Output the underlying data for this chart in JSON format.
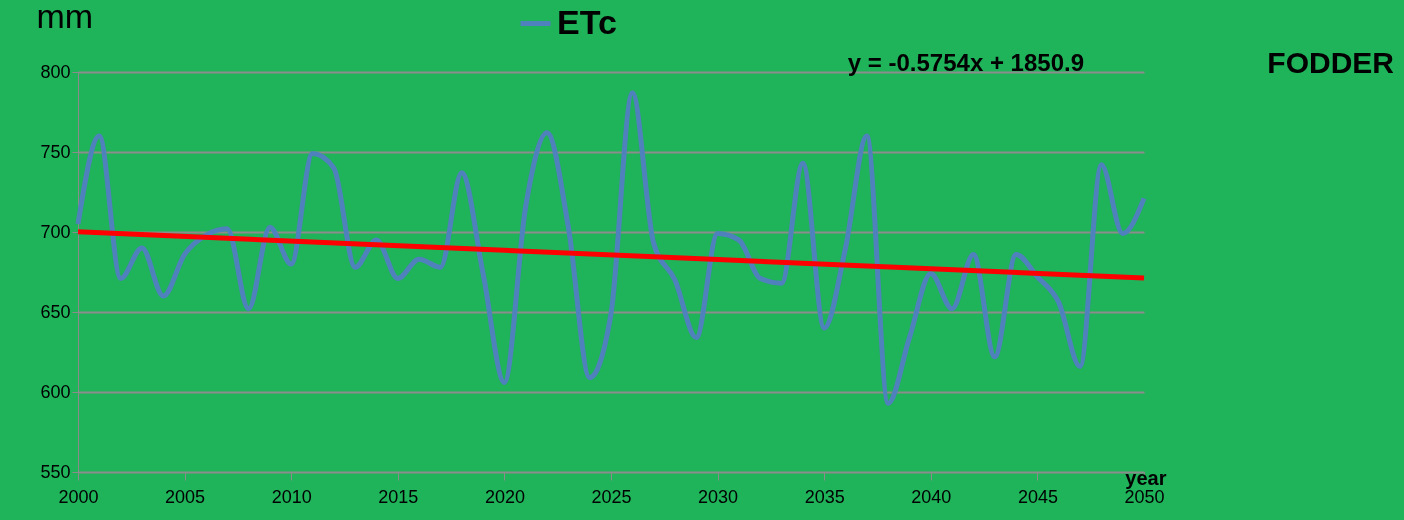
{
  "chart_data": {
    "type": "line",
    "x": [
      2000,
      2001,
      2002,
      2003,
      2004,
      2005,
      2006,
      2007,
      2008,
      2009,
      2010,
      2011,
      2012,
      2013,
      2014,
      2015,
      2016,
      2017,
      2018,
      2019,
      2020,
      2021,
      2022,
      2023,
      2024,
      2025,
      2026,
      2027,
      2028,
      2029,
      2030,
      2031,
      2032,
      2033,
      2034,
      2035,
      2036,
      2037,
      2038,
      2039,
      2040,
      2041,
      2042,
      2043,
      2044,
      2045,
      2046,
      2047,
      2048,
      2049,
      2050
    ],
    "series": [
      {
        "name": "ETc",
        "color": "#4f81bd",
        "values": [
          705,
          760,
          671,
          690,
          660,
          686,
          698,
          702,
          652,
          703,
          680,
          749,
          740,
          678,
          695,
          671,
          683,
          678,
          737,
          674,
          606,
          716,
          762,
          703,
          609,
          649,
          787,
          693,
          670,
          634,
          699,
          695,
          671,
          668,
          743,
          640,
          690,
          760,
          593,
          634,
          674,
          652,
          686,
          622,
          686,
          672,
          656,
          616,
          742,
          699,
          721
        ]
      },
      {
        "type": "line",
        "color": "#ff0000",
        "x": [
          2000,
          2050
        ],
        "values": [
          700.1,
          671.3
        ]
      }
    ],
    "ylabel": "mm",
    "xlabel": "year",
    "annotations": [
      "y = -0.5754x + 1850.9",
      "FODDER"
    ],
    "xlim": [
      2000,
      2050
    ],
    "xticks": [
      2000,
      2005,
      2010,
      2015,
      2020,
      2025,
      2030,
      2035,
      2040,
      2045,
      2050
    ],
    "ylim": [
      550,
      800
    ],
    "yticks": [
      550,
      600,
      650,
      700,
      750,
      800
    ],
    "grid": "y",
    "legend": "top",
    "marker": "none",
    "line_style": "solid"
  }
}
